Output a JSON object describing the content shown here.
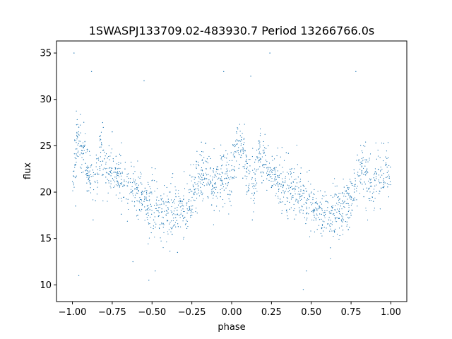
{
  "chart_data": {
    "type": "scatter",
    "title": "1SWASPJ133709.02-483930.7 Period 13266766.0s",
    "xlabel": "phase",
    "ylabel": "flux",
    "xlim": [
      -1.1,
      1.1
    ],
    "ylim": [
      8.2,
      36.3
    ],
    "xticks": [
      -1.0,
      -0.75,
      -0.5,
      -0.25,
      0.0,
      0.25,
      0.5,
      0.75,
      1.0
    ],
    "xtick_labels": [
      "−1.00",
      "−0.75",
      "−0.50",
      "−0.25",
      "0.00",
      "0.25",
      "0.50",
      "0.75",
      "1.00"
    ],
    "yticks": [
      10,
      15,
      20,
      25,
      30,
      35
    ],
    "ytick_labels": [
      "10",
      "15",
      "20",
      "25",
      "30",
      "35"
    ],
    "grid": false,
    "marker_color": "#1f77b4",
    "profile": {
      "phase": [
        0.0,
        0.03,
        0.07,
        0.1,
        0.14,
        0.18,
        0.22,
        0.27,
        0.32,
        0.38,
        0.45,
        0.5,
        0.56,
        0.62,
        0.68,
        0.74,
        0.78,
        0.83,
        0.88,
        0.93,
        0.97,
        1.0
      ],
      "flux": [
        21.0,
        25.5,
        24.5,
        22.0,
        21.0,
        24.5,
        22.5,
        22.0,
        21.0,
        20.5,
        19.5,
        18.5,
        18.0,
        17.5,
        17.8,
        19.0,
        21.0,
        22.5,
        20.5,
        21.5,
        22.0,
        21.0
      ]
    },
    "series": [
      {
        "points": [
          [
            -0.98,
            18.5
          ],
          [
            -0.97,
            26.0
          ],
          [
            -0.96,
            27.0
          ],
          [
            -0.95,
            25.0
          ],
          [
            -0.93,
            23.5
          ],
          [
            -0.91,
            22.0
          ],
          [
            -0.89,
            21.0
          ],
          [
            -0.87,
            17.0
          ],
          [
            -0.85,
            24.0
          ],
          [
            -0.83,
            26.0
          ],
          [
            -0.81,
            27.5
          ],
          [
            -0.79,
            21.0
          ],
          [
            -0.77,
            25.0
          ],
          [
            -0.75,
            26.5
          ],
          [
            -0.73,
            22.5
          ],
          [
            -0.71,
            23.0
          ],
          [
            -0.69,
            21.0
          ],
          [
            -0.67,
            22.5
          ],
          [
            -0.65,
            21.0
          ],
          [
            -0.63,
            20.0
          ],
          [
            -0.61,
            18.5
          ],
          [
            -0.59,
            17.5
          ],
          [
            -0.57,
            21.0
          ],
          [
            -0.55,
            19.0
          ],
          [
            -0.53,
            18.5
          ],
          [
            -0.51,
            20.0
          ],
          [
            -0.49,
            17.0
          ],
          [
            -0.47,
            18.0
          ],
          [
            -0.45,
            16.5
          ],
          [
            -0.43,
            19.0
          ],
          [
            -0.41,
            18.0
          ],
          [
            -0.39,
            20.0
          ],
          [
            -0.37,
            22.0
          ],
          [
            -0.35,
            19.5
          ],
          [
            -0.33,
            17.5
          ],
          [
            -0.31,
            19.0
          ],
          [
            -0.29,
            16.5
          ],
          [
            -0.27,
            19.0
          ],
          [
            -0.25,
            17.5
          ],
          [
            -0.23,
            20.0
          ],
          [
            -0.21,
            23.0
          ],
          [
            -0.19,
            20.0
          ],
          [
            -0.17,
            21.5
          ],
          [
            -0.15,
            19.5
          ],
          [
            -0.13,
            21.0
          ],
          [
            -0.11,
            18.0
          ],
          [
            -0.09,
            22.0
          ],
          [
            -0.07,
            19.5
          ],
          [
            -0.05,
            24.0
          ],
          [
            -0.03,
            22.5
          ],
          [
            -0.01,
            19.0
          ],
          [
            0.01,
            25.0
          ],
          [
            0.03,
            26.5
          ],
          [
            0.05,
            23.0
          ],
          [
            0.07,
            21.5
          ],
          [
            0.09,
            24.0
          ],
          [
            0.11,
            22.0
          ],
          [
            0.13,
            17.0
          ],
          [
            0.15,
            23.5
          ],
          [
            0.17,
            25.5
          ],
          [
            0.19,
            21.0
          ],
          [
            0.21,
            23.0
          ],
          [
            0.23,
            25.0
          ],
          [
            0.25,
            20.5
          ],
          [
            0.27,
            22.5
          ],
          [
            0.29,
            21.0
          ],
          [
            0.31,
            22.0
          ],
          [
            0.33,
            20.0
          ],
          [
            0.35,
            19.0
          ],
          [
            0.37,
            20.5
          ],
          [
            0.39,
            18.0
          ],
          [
            0.41,
            21.0
          ],
          [
            0.43,
            19.5
          ],
          [
            0.45,
            18.0
          ],
          [
            0.47,
            17.0
          ],
          [
            0.49,
            19.5
          ],
          [
            0.51,
            18.0
          ],
          [
            0.53,
            17.0
          ],
          [
            0.55,
            18.5
          ],
          [
            0.57,
            16.5
          ],
          [
            0.59,
            19.0
          ],
          [
            0.61,
            17.0
          ],
          [
            0.63,
            18.0
          ],
          [
            0.65,
            16.0
          ],
          [
            0.67,
            19.5
          ],
          [
            0.69,
            17.0
          ],
          [
            0.71,
            19.0
          ],
          [
            0.73,
            20.5
          ],
          [
            0.75,
            17.5
          ],
          [
            0.77,
            20.0
          ],
          [
            0.79,
            24.0
          ],
          [
            0.81,
            21.0
          ],
          [
            0.83,
            19.5
          ],
          [
            0.85,
            22.5
          ],
          [
            0.87,
            21.0
          ],
          [
            0.89,
            19.0
          ],
          [
            0.91,
            22.0
          ],
          [
            0.93,
            21.0
          ],
          [
            0.95,
            20.5
          ],
          [
            0.97,
            23.0
          ],
          [
            0.99,
            21.5
          ],
          [
            -0.96,
            11.0
          ],
          [
            -0.88,
            33.0
          ],
          [
            -0.55,
            32.0
          ],
          [
            -0.52,
            10.5
          ],
          [
            -0.48,
            11.5
          ],
          [
            -0.05,
            33.0
          ],
          [
            0.12,
            32.5
          ],
          [
            0.45,
            9.5
          ],
          [
            0.47,
            11.5
          ],
          [
            0.78,
            33.0
          ],
          [
            -0.62,
            12.5
          ],
          [
            0.62,
            14.0
          ],
          [
            -0.99,
            35.0
          ],
          [
            0.24,
            35.0
          ],
          [
            -0.34,
            13.5
          ]
        ]
      }
    ]
  }
}
